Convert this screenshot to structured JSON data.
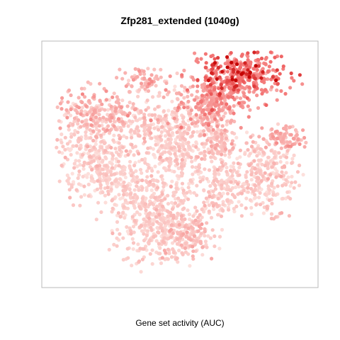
{
  "chart_data": {
    "type": "scatter",
    "title": "Zfp281_extended (1040g)",
    "xlabel": "Gene set activity (AUC)",
    "ylabel": "",
    "legend": "none",
    "grid": false,
    "axes_ticks": false,
    "color_scale": {
      "low": "#fde0dc",
      "mid": "#f26a6a",
      "high": "#c40000"
    },
    "xlim": [
      0,
      100
    ],
    "ylim": [
      0,
      100
    ],
    "point_count": 3000,
    "clusters": [
      {
        "name": "",
        "cx": 73,
        "cy": 88,
        "sx": 9,
        "sy": 5,
        "n": 380,
        "activity": 0.62,
        "activity_spread": 0.15
      },
      {
        "name": "",
        "cx": 62,
        "cy": 76,
        "sx": 7,
        "sy": 5,
        "n": 240,
        "activity": 0.4,
        "activity_spread": 0.14
      },
      {
        "name": "",
        "cx": 37,
        "cy": 86,
        "sx": 5,
        "sy": 3,
        "n": 70,
        "activity": 0.28,
        "activity_spread": 0.12
      },
      {
        "name": "",
        "cx": 16,
        "cy": 72,
        "sx": 9,
        "sy": 5,
        "n": 190,
        "activity": 0.24,
        "activity_spread": 0.12
      },
      {
        "name": "",
        "cx": 33,
        "cy": 67,
        "sx": 6,
        "sy": 6,
        "n": 120,
        "activity": 0.14,
        "activity_spread": 0.1
      },
      {
        "name": "",
        "cx": 17,
        "cy": 53,
        "sx": 7,
        "sy": 9,
        "n": 320,
        "activity": 0.1,
        "activity_spread": 0.08
      },
      {
        "name": "",
        "cx": 49,
        "cy": 57,
        "sx": 6.5,
        "sy": 11,
        "n": 380,
        "activity": 0.1,
        "activity_spread": 0.08
      },
      {
        "name": "",
        "cx": 83,
        "cy": 45,
        "sx": 6,
        "sy": 8,
        "n": 260,
        "activity": 0.12,
        "activity_spread": 0.09
      },
      {
        "name": "",
        "cx": 91,
        "cy": 61,
        "sx": 3.5,
        "sy": 2.5,
        "n": 80,
        "activity": 0.3,
        "activity_spread": 0.12
      },
      {
        "name": "",
        "cx": 43,
        "cy": 22,
        "sx": 8,
        "sy": 9,
        "n": 420,
        "activity": 0.11,
        "activity_spread": 0.08
      },
      {
        "name": "",
        "cx": 55,
        "cy": 18,
        "sx": 4,
        "sy": 4,
        "n": 90,
        "activity": 0.2,
        "activity_spread": 0.1
      },
      {
        "name": "",
        "cx": 64,
        "cy": 60,
        "sx": 4,
        "sy": 6,
        "n": 150,
        "activity": 0.16,
        "activity_spread": 0.1
      },
      {
        "name": "",
        "cx": 30,
        "cy": 40,
        "sx": 6,
        "sy": 6,
        "n": 150,
        "activity": 0.09,
        "activity_spread": 0.07
      },
      {
        "name": "",
        "cx": 66,
        "cy": 38,
        "sx": 5,
        "sy": 6,
        "n": 150,
        "activity": 0.1,
        "activity_spread": 0.08
      }
    ]
  }
}
